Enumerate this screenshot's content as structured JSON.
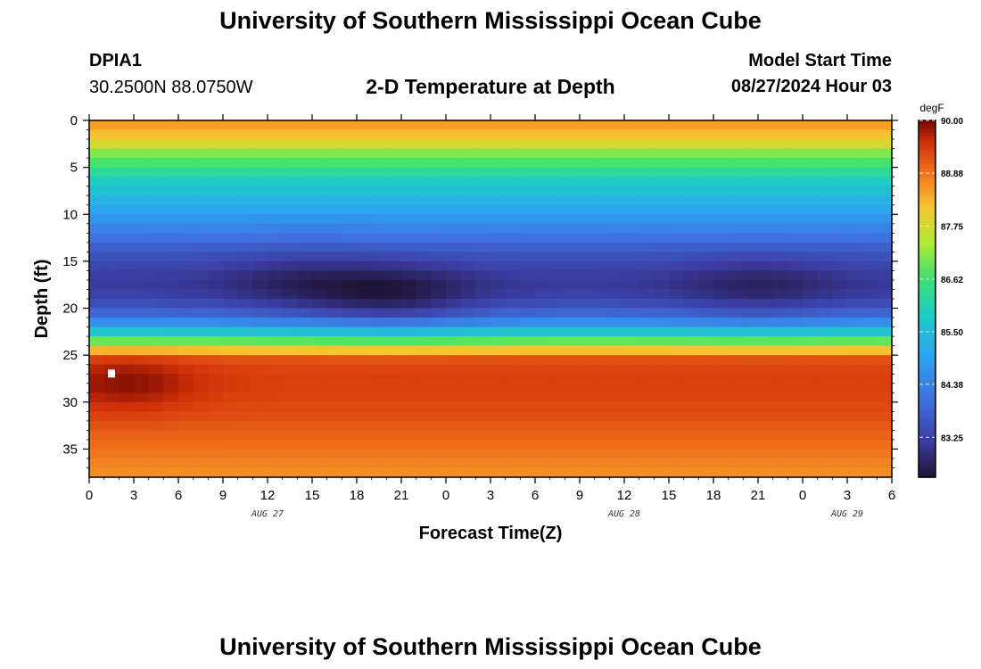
{
  "page": {
    "title_top": "University of Southern Mississippi Ocean Cube",
    "title_bottom": "University of Southern Mississippi Ocean Cube"
  },
  "header": {
    "station": "DPIA1",
    "location": "30.2500N  88.0750W",
    "chart_title": "2-D Temperature at Depth",
    "model_label": "Model Start Time",
    "model_time": "08/27/2024 Hour 03"
  },
  "chart_data": {
    "type": "heatmap",
    "title": "2-D Temperature at Depth",
    "xlabel": "Forecast Time(Z)",
    "ylabel": "Depth (ft)",
    "x_tick_labels": [
      "0",
      "3",
      "6",
      "9",
      "12",
      "15",
      "18",
      "21",
      "0",
      "3",
      "6",
      "9",
      "12",
      "15",
      "18",
      "21",
      "0",
      "3",
      "6"
    ],
    "x_date_labels": [
      {
        "label": "AUG 27",
        "hour_offset": 12
      },
      {
        "label": "AUG 28",
        "hour_offset": 36
      },
      {
        "label": "AUG 29",
        "hour_offset": 51
      }
    ],
    "x_range_hours": [
      0,
      54
    ],
    "y_ticks": [
      0,
      5,
      10,
      15,
      20,
      25,
      30,
      35
    ],
    "y_range_ft": [
      0,
      38
    ],
    "y_inverted": true,
    "colorbar": {
      "unit": "degF",
      "range": [
        82.4,
        90.0
      ],
      "tick_labels": [
        "90.00",
        "88.88",
        "87.75",
        "86.62",
        "85.50",
        "84.38",
        "83.25"
      ],
      "tick_values": [
        90.0,
        88.88,
        87.75,
        86.62,
        85.5,
        84.38,
        83.25
      ]
    },
    "depth_profile_degF": [
      {
        "depth": 0.5,
        "temp": 88.5
      },
      {
        "depth": 1.5,
        "temp": 88.2
      },
      {
        "depth": 2.5,
        "temp": 87.8
      },
      {
        "depth": 3.5,
        "temp": 87.1
      },
      {
        "depth": 4.5,
        "temp": 86.7
      },
      {
        "depth": 5.5,
        "temp": 86.3
      },
      {
        "depth": 6.5,
        "temp": 85.9
      },
      {
        "depth": 7.5,
        "temp": 85.6
      },
      {
        "depth": 8.5,
        "temp": 85.3
      },
      {
        "depth": 9.5,
        "temp": 85.0
      },
      {
        "depth": 10.5,
        "temp": 84.7
      },
      {
        "depth": 11.5,
        "temp": 84.4
      },
      {
        "depth": 12.5,
        "temp": 84.1
      },
      {
        "depth": 13.5,
        "temp": 83.8
      },
      {
        "depth": 14.5,
        "temp": 83.55
      },
      {
        "depth": 15.5,
        "temp": 83.35
      },
      {
        "depth": 16.5,
        "temp": 83.2
      },
      {
        "depth": 17.5,
        "temp": 83.15
      },
      {
        "depth": 18.5,
        "temp": 83.25
      },
      {
        "depth": 19.5,
        "temp": 83.5
      },
      {
        "depth": 20.5,
        "temp": 83.9
      },
      {
        "depth": 21.5,
        "temp": 84.6
      },
      {
        "depth": 22.5,
        "temp": 85.7
      },
      {
        "depth": 23.5,
        "temp": 86.9
      },
      {
        "depth": 24.5,
        "temp": 88.2
      },
      {
        "depth": 25.5,
        "temp": 89.2
      },
      {
        "depth": 26.5,
        "temp": 89.35
      },
      {
        "depth": 27.5,
        "temp": 89.4
      },
      {
        "depth": 28.5,
        "temp": 89.4
      },
      {
        "depth": 29.5,
        "temp": 89.35
      },
      {
        "depth": 30.5,
        "temp": 89.3
      },
      {
        "depth": 31.5,
        "temp": 89.25
      },
      {
        "depth": 32.5,
        "temp": 89.15
      },
      {
        "depth": 33.5,
        "temp": 89.05
      },
      {
        "depth": 34.5,
        "temp": 88.95
      },
      {
        "depth": 35.5,
        "temp": 88.85
      },
      {
        "depth": 36.5,
        "temp": 88.75
      },
      {
        "depth": 37.5,
        "temp": 88.65
      }
    ],
    "cold_cores": [
      {
        "hour": 20.5,
        "depth": 19.0,
        "anomaly": -0.7
      },
      {
        "hour": 14.0,
        "depth": 17.5,
        "anomaly": -0.4
      },
      {
        "hour": 45.0,
        "depth": 18.0,
        "anomaly": -0.45
      }
    ],
    "warm_cores": [
      {
        "hour": 2.5,
        "depth": 28.0,
        "anomaly": 0.5
      }
    ],
    "marker": {
      "hour": 1.5,
      "depth": 27.0,
      "color": "#ffffff"
    }
  }
}
